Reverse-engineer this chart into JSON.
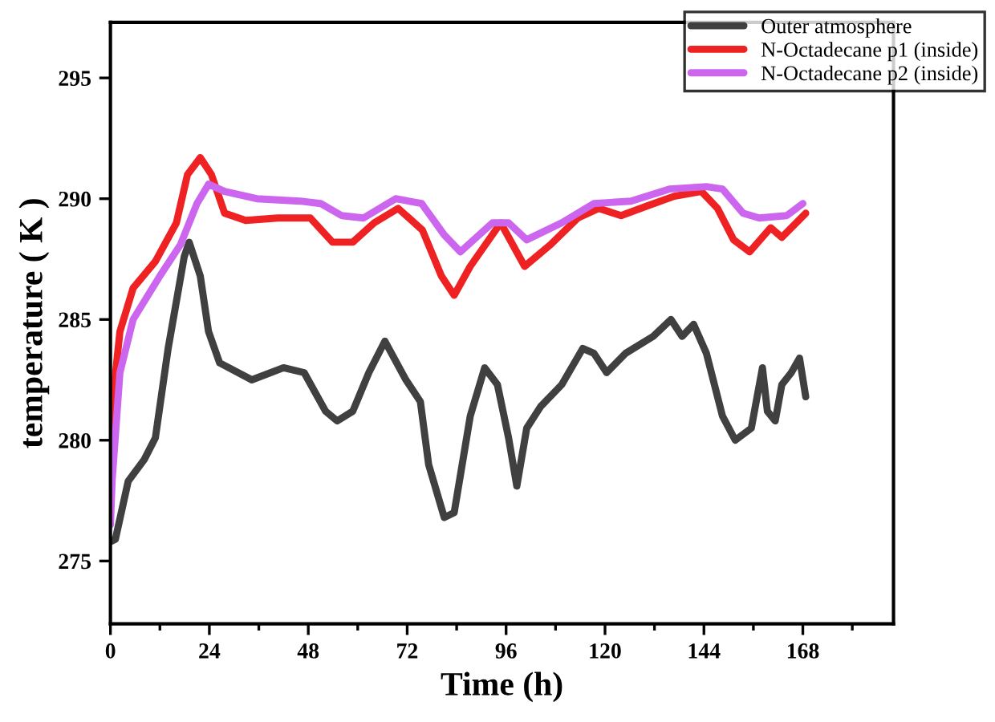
{
  "chart_data": {
    "type": "line",
    "xlabel": "Time (h)",
    "ylabel": "temperature ( K )",
    "legend": "top right",
    "grid": false,
    "xlim": [
      0,
      190
    ],
    "ylim": [
      272.4,
      297.3
    ],
    "xticks": [
      0,
      {
        "value": 12,
        "label": null
      },
      24,
      {
        "value": 36,
        "label": null
      },
      48,
      {
        "value": 60,
        "label": null
      },
      72,
      {
        "value": 84,
        "label": null
      },
      96,
      {
        "value": 108,
        "label": null
      },
      120,
      {
        "value": 132,
        "label": null
      },
      144,
      {
        "value": 156,
        "label": null
      },
      168,
      {
        "value": 180,
        "label": null
      }
    ],
    "yticks": [
      275,
      280,
      285,
      290,
      295
    ],
    "series": [
      {
        "name": "Outer atmosphere",
        "color": "#404040",
        "x": [
          0,
          1.2,
          4.3,
          8.2,
          10.9,
          14,
          17.9,
          19.1,
          21.8,
          23.8,
          26.5,
          34.3,
          42,
          47,
          52.2,
          55,
          58.8,
          62.7,
          66.6,
          71.7,
          75.2,
          77.2,
          81,
          83.4,
          87.3,
          90.8,
          93.9,
          96.6,
          98.6,
          101,
          104.4,
          109.5,
          114.6,
          117.3,
          120.4,
          125,
          131.7,
          136,
          138.7,
          141.5,
          144.6,
          148.5,
          151.6,
          155.5,
          158.2,
          159.4,
          161.3,
          162.9,
          165.2,
          167.2,
          168.7
        ],
        "values": [
          275.8,
          275.9,
          278.3,
          279.2,
          280.1,
          283.8,
          287.6,
          288.2,
          286.8,
          284.5,
          283.2,
          282.5,
          283,
          282.8,
          281.2,
          280.8,
          281.2,
          282.8,
          284.1,
          282.5,
          281.6,
          279,
          276.8,
          277,
          281,
          283,
          282.3,
          280.1,
          278.1,
          280.5,
          281.4,
          282.3,
          283.8,
          283.6,
          282.8,
          283.6,
          284.3,
          285,
          284.3,
          284.8,
          283.6,
          281,
          280,
          280.5,
          283,
          281.2,
          280.8,
          282.3,
          282.8,
          283.4,
          281.8
        ]
      },
      {
        "name": "N-Octadecane p1 (inside)",
        "color": "#ee2222",
        "x": [
          0,
          0.4,
          2.3,
          5.5,
          10.9,
          16,
          18.7,
          21.8,
          24.5,
          27.7,
          32.8,
          40.6,
          48.5,
          53.9,
          58.8,
          64,
          69.8,
          75.7,
          80.3,
          83.4,
          87.3,
          94.7,
          100.5,
          106.8,
          113.4,
          118.5,
          123.9,
          130.2,
          136.8,
          143.4,
          147.3,
          151.2,
          155.1,
          160.2,
          162.9,
          168.7
        ],
        "values": [
          277.5,
          281.4,
          284.5,
          286.3,
          287.4,
          289,
          291,
          291.7,
          291,
          289.4,
          289.1,
          289.2,
          289.2,
          288.2,
          288.2,
          289,
          289.6,
          288.7,
          286.8,
          286,
          287.2,
          289,
          287.2,
          288.1,
          289.2,
          289.6,
          289.3,
          289.7,
          290.1,
          290.3,
          289.6,
          288.3,
          287.8,
          288.8,
          288.4,
          289.4
        ]
      },
      {
        "name": "N-Octadecane p2 (inside)",
        "color": "#cc66ee",
        "x": [
          0,
          0.4,
          2.3,
          5.5,
          12,
          17,
          21,
          23.8,
          27.7,
          35.5,
          46,
          51,
          56.1,
          61.4,
          69.2,
          75.5,
          81,
          84.9,
          92.7,
          96.6,
          101,
          109.5,
          117.3,
          126.3,
          135.6,
          144.6,
          148.5,
          153.5,
          157.4,
          164.1,
          168
        ],
        "values": [
          276.5,
          278.3,
          282.8,
          285,
          286.8,
          288.1,
          289.8,
          290.6,
          290.3,
          290,
          289.9,
          289.8,
          289.3,
          289.2,
          290,
          289.8,
          288.5,
          287.8,
          289,
          289,
          288.3,
          289,
          289.8,
          289.9,
          290.4,
          290.5,
          290.4,
          289.4,
          289.2,
          289.3,
          289.8
        ]
      }
    ]
  }
}
